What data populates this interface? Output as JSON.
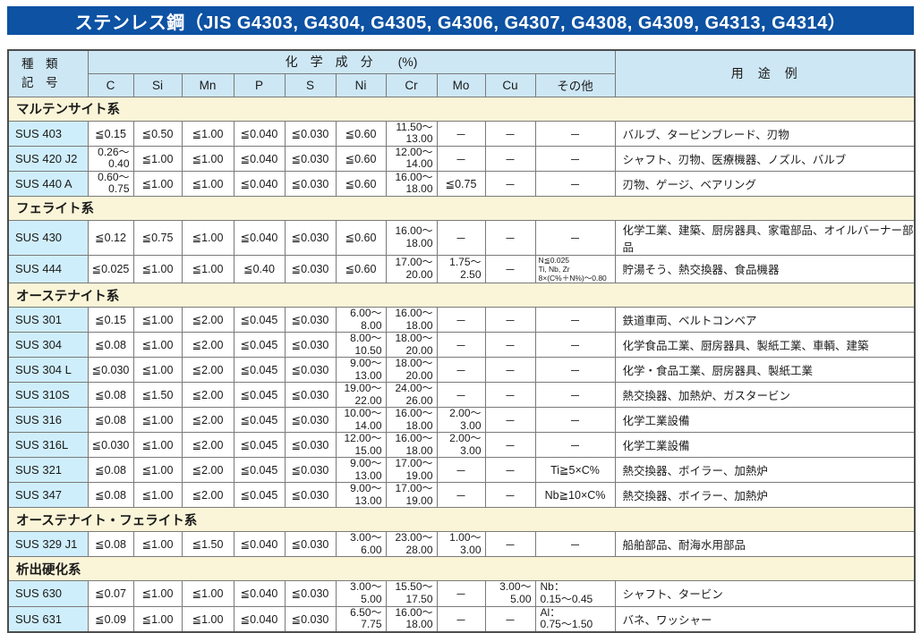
{
  "title": "ステンレス鋼（JIS G4303, G4304, G4305, G4306, G4307, G4308, G4309, G4313, G4314）",
  "colors": {
    "title_bar_bg": "#0d52a3",
    "header_bg": "#cde7f5",
    "row_label_bg": "#cfeefb",
    "section_bg": "#faf5d8"
  },
  "table": {
    "corner": {
      "line1": "種　類",
      "line2": "記　号"
    },
    "chem_header": "化　学　成　分　　(%)",
    "usage_header": "用　途　例",
    "element_headers": [
      "C",
      "Si",
      "Mn",
      "P",
      "S",
      "Ni",
      "Cr",
      "Mo",
      "Cu",
      "その他"
    ],
    "groups": [
      {
        "name": "マルテンサイト系",
        "rows": [
          {
            "id": "SUS 403",
            "values": [
              "≦0.15",
              "≦0.50",
              "≦1.00",
              "≦0.040",
              "≦0.030",
              "≦0.60",
              "11.50～\n13.00",
              "－",
              "－",
              "－"
            ],
            "usage": "バルブ、タービンブレード、刃物"
          },
          {
            "id": "SUS 420 J2",
            "values": [
              "0.26～\n0.40",
              "≦1.00",
              "≦1.00",
              "≦0.040",
              "≦0.030",
              "≦0.60",
              "12.00～\n14.00",
              "－",
              "－",
              "－"
            ],
            "usage": "シャフト、刃物、医療機器、ノズル、バルブ"
          },
          {
            "id": "SUS 440 A",
            "values": [
              "0.60～\n0.75",
              "≦1.00",
              "≦1.00",
              "≦0.040",
              "≦0.030",
              "≦0.60",
              "16.00～\n18.00",
              "≦0.75",
              "－",
              "－"
            ],
            "usage": "刃物、ゲージ、ベアリング"
          }
        ]
      },
      {
        "name": "フェライト系",
        "rows": [
          {
            "id": "SUS 430",
            "values": [
              "≦0.12",
              "≦0.75",
              "≦1.00",
              "≦0.040",
              "≦0.030",
              "≦0.60",
              "16.00～\n18.00",
              "－",
              "－",
              "－"
            ],
            "usage": "化学工業、建築、厨房器具、家電部品、オイルバーナー部品"
          },
          {
            "id": "SUS 444",
            "values": [
              "≦0.025",
              "≦1.00",
              "≦1.00",
              "≦0.40",
              "≦0.030",
              "≦0.60",
              "17.00～\n20.00",
              "1.75～\n2.50",
              "－",
              "N≦0.025\nTi, Nb, Zr\n8×(C%＋N%)～0.80"
            ],
            "usage": "貯湯そう、熱交換器、食品機器"
          }
        ]
      },
      {
        "name": "オーステナイト系",
        "rows": [
          {
            "id": "SUS 301",
            "values": [
              "≦0.15",
              "≦1.00",
              "≦2.00",
              "≦0.045",
              "≦0.030",
              "6.00～\n8.00",
              "16.00～\n18.00",
              "－",
              "－",
              "－"
            ],
            "usage": "鉄道車両、ベルトコンベア"
          },
          {
            "id": "SUS 304",
            "values": [
              "≦0.08",
              "≦1.00",
              "≦2.00",
              "≦0.045",
              "≦0.030",
              "8.00～\n10.50",
              "18.00～\n20.00",
              "－",
              "－",
              "－"
            ],
            "usage": "化学食品工業、厨房器具、製紙工業、車輌、建築"
          },
          {
            "id": "SUS 304 L",
            "values": [
              "≦0.030",
              "≦1.00",
              "≦2.00",
              "≦0.045",
              "≦0.030",
              "9.00～\n13.00",
              "18.00～\n20.00",
              "－",
              "－",
              "－"
            ],
            "usage": "化学・食品工業、厨房器具、製紙工業"
          },
          {
            "id": "SUS 310S",
            "values": [
              "≦0.08",
              "≦1.50",
              "≦2.00",
              "≦0.045",
              "≦0.030",
              "19.00～\n22.00",
              "24.00～\n26.00",
              "－",
              "－",
              "－"
            ],
            "usage": "熱交換器、加熱炉、ガスタービン"
          },
          {
            "id": "SUS 316",
            "values": [
              "≦0.08",
              "≦1.00",
              "≦2.00",
              "≦0.045",
              "≦0.030",
              "10.00～\n14.00",
              "16.00～\n18.00",
              "2.00～\n3.00",
              "－",
              "－"
            ],
            "usage": "化学工業設備"
          },
          {
            "id": "SUS 316L",
            "values": [
              "≦0.030",
              "≦1.00",
              "≦2.00",
              "≦0.045",
              "≦0.030",
              "12.00～\n15.00",
              "16.00～\n18.00",
              "2.00～\n3.00",
              "－",
              "－"
            ],
            "usage": "化学工業設備"
          },
          {
            "id": "SUS 321",
            "values": [
              "≦0.08",
              "≦1.00",
              "≦2.00",
              "≦0.045",
              "≦0.030",
              "9.00～\n13.00",
              "17.00～\n19.00",
              "－",
              "－",
              "Ti≧5×C%"
            ],
            "usage": "熱交換器、ボイラー、加熱炉"
          },
          {
            "id": "SUS 347",
            "values": [
              "≦0.08",
              "≦1.00",
              "≦2.00",
              "≦0.045",
              "≦0.030",
              "9.00～\n13.00",
              "17.00～\n19.00",
              "－",
              "－",
              "Nb≧10×C%"
            ],
            "usage": "熱交換器、ボイラー、加熱炉"
          }
        ]
      },
      {
        "name": "オーステナイト・フェライト系",
        "rows": [
          {
            "id": "SUS 329 J1",
            "values": [
              "≦0.08",
              "≦1.00",
              "≦1.50",
              "≦0.040",
              "≦0.030",
              "3.00～\n6.00",
              "23.00～\n28.00",
              "1.00～\n3.00",
              "－",
              "－"
            ],
            "usage": "船舶部品、耐海水用部品"
          }
        ]
      },
      {
        "name": "析出硬化系",
        "rows": [
          {
            "id": "SUS 630",
            "values": [
              "≦0.07",
              "≦1.00",
              "≦1.00",
              "≦0.040",
              "≦0.030",
              "3.00～\n5.00",
              "15.50～\n17.50",
              "－",
              "3.00～\n5.00",
              "Nb：\n0.15～0.45"
            ],
            "usage": "シャフト、タービン"
          },
          {
            "id": "SUS 631",
            "values": [
              "≦0.09",
              "≦1.00",
              "≦1.00",
              "≦0.040",
              "≦0.030",
              "6.50～\n7.75",
              "16.00～\n18.00",
              "－",
              "－",
              "Al：\n0.75～1.50"
            ],
            "usage": "バネ、ワッシャー"
          }
        ]
      }
    ]
  }
}
